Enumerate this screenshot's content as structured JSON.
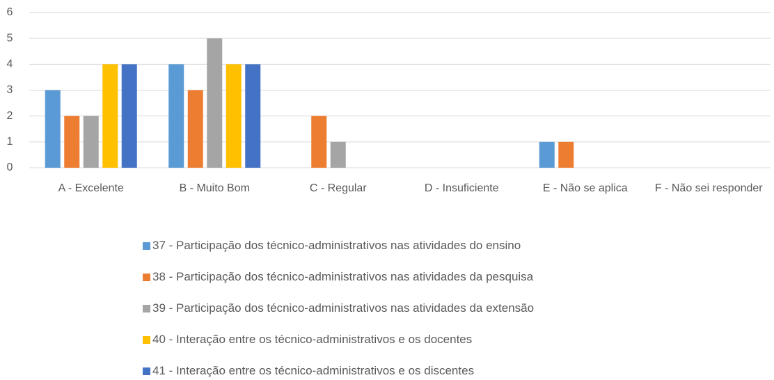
{
  "chart_data": {
    "type": "bar",
    "categories": [
      "A - Excelente",
      "B - Muito Bom",
      "C - Regular",
      "D - Insuficiente",
      "E - Não se aplica",
      "F - Não sei responder"
    ],
    "series": [
      {
        "name": "37 - Participação dos técnico-administrativos nas atividades do ensino",
        "color": "#5b9bd5",
        "values": [
          3,
          4,
          0,
          0,
          1,
          0
        ]
      },
      {
        "name": "38 - Participação dos técnico-administrativos nas atividades da pesquisa",
        "color": "#ed7d31",
        "values": [
          2,
          3,
          2,
          0,
          1,
          0
        ]
      },
      {
        "name": "39 - Participação dos técnico-administrativos nas atividades da extensão",
        "color": "#a5a5a5",
        "values": [
          2,
          5,
          1,
          0,
          0,
          0
        ]
      },
      {
        "name": "40 - Interação entre os técnico-administrativos e os docentes",
        "color": "#ffc000",
        "values": [
          4,
          4,
          0,
          0,
          0,
          0
        ]
      },
      {
        "name": "41 - Interação entre os técnico-administrativos e os discentes",
        "color": "#4472c4",
        "values": [
          4,
          4,
          0,
          0,
          0,
          0
        ]
      }
    ],
    "ylim": [
      0,
      6
    ],
    "yticks": [
      0,
      1,
      2,
      3,
      4,
      5,
      6
    ],
    "grid": true,
    "legend": "bottom"
  }
}
